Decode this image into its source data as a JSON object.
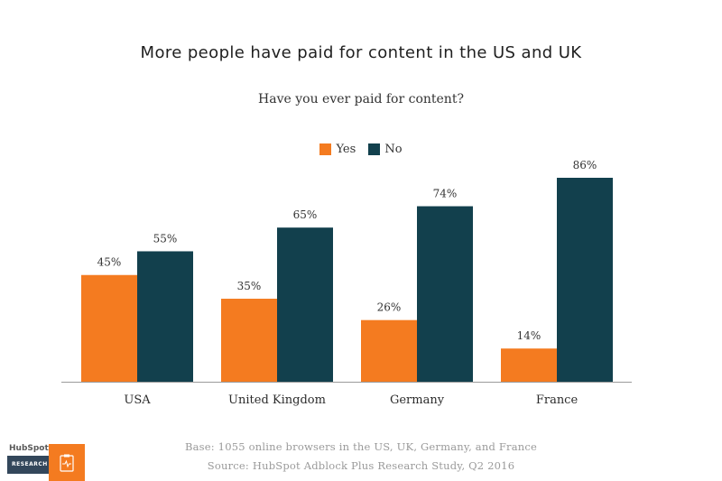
{
  "chart_data": {
    "type": "bar",
    "title": "More people have paid for content in the US and UK",
    "subtitle": "Have you ever paid for content?",
    "categories": [
      "USA",
      "United Kingdom",
      "Germany",
      "France"
    ],
    "series": [
      {
        "name": "Yes",
        "values": [
          45,
          35,
          26,
          14
        ],
        "labels": [
          "45%",
          "35%",
          "26%",
          "14%"
        ],
        "color": "#f47b20"
      },
      {
        "name": "No",
        "values": [
          55,
          65,
          74,
          86
        ],
        "labels": [
          "55%",
          "65%",
          "74%",
          "86%"
        ],
        "color": "#12404d"
      }
    ],
    "ylim": [
      0,
      100
    ],
    "grid": false,
    "legend_position": "top-center"
  },
  "footer": {
    "base_note": "Base: 1055 online browsers in the US, UK, Germany, and France",
    "source_note": "Source: HubSpot Adblock Plus Research Study, Q2 2016"
  },
  "branding": {
    "logo_text": "HubSpot",
    "logo_subtext": "RESEARCH",
    "icon": "clipboard-pulse-icon"
  }
}
